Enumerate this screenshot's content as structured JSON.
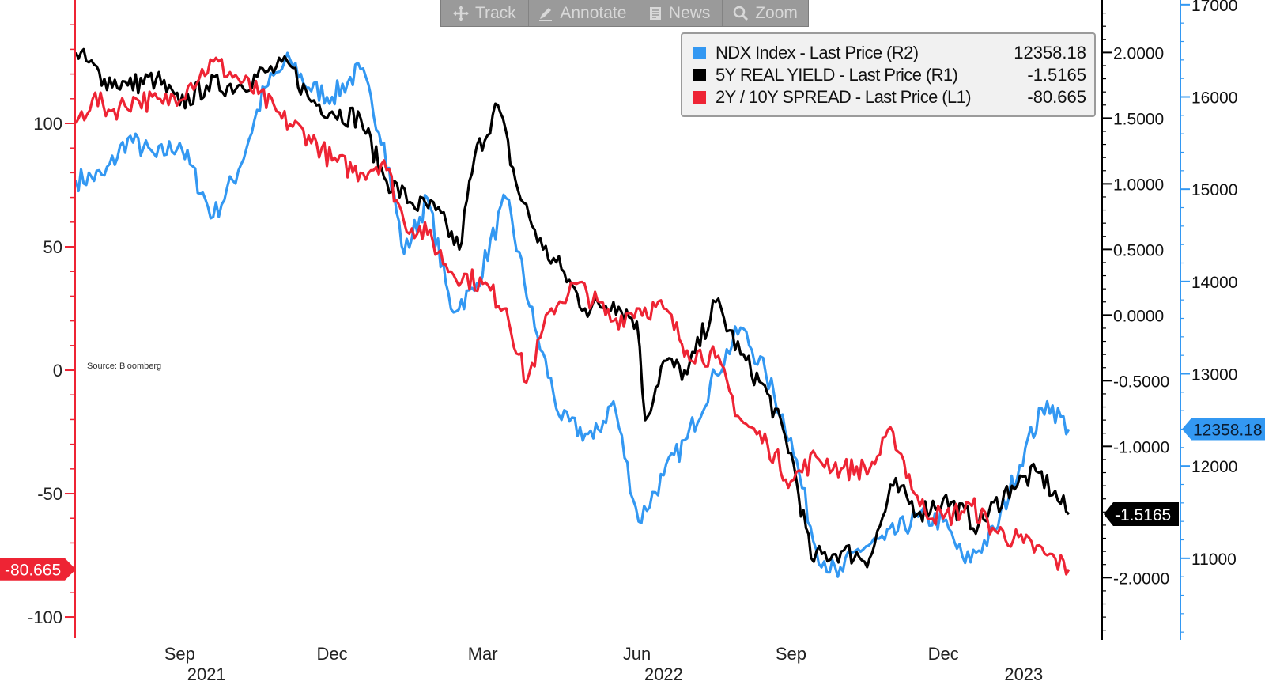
{
  "toolbar": [
    {
      "label": "Track",
      "icon": "crosshair-icon"
    },
    {
      "label": "Annotate",
      "icon": "pencil-icon"
    },
    {
      "label": "News",
      "icon": "news-icon"
    },
    {
      "label": "Zoom",
      "icon": "magnifier-icon"
    }
  ],
  "legend": [
    {
      "label": "NDX Index - Last Price (R2)",
      "value": "12358.18",
      "color": "#3398f2"
    },
    {
      "label": "5Y REAL YIELD - Last Price (R1)",
      "value": "-1.5165",
      "color": "#000000"
    },
    {
      "label": "2Y / 10Y SPREAD - Last Price (L1)",
      "value": "-80.665",
      "color": "#ee2434"
    }
  ],
  "chart_data": {
    "type": "line",
    "source_note": "Source: Bloomberg",
    "x_axis": {
      "range": [
        "2021-07-15",
        "2023-02-28"
      ],
      "month_labels": [
        {
          "label": "Sep",
          "date": "2021-09-15"
        },
        {
          "label": "Dec",
          "date": "2021-12-15"
        },
        {
          "label": "Mar",
          "date": "2022-03-15"
        },
        {
          "label": "Jun",
          "date": "2022-06-15"
        },
        {
          "label": "Sep",
          "date": "2022-09-15"
        },
        {
          "label": "Dec",
          "date": "2022-12-15"
        }
      ],
      "year_labels": [
        {
          "label": "2021",
          "date": "2021-10-01"
        },
        {
          "label": "2022",
          "date": "2022-07-01"
        },
        {
          "label": "2023",
          "date": "2023-02-01"
        }
      ]
    },
    "axes": {
      "L1": {
        "side": "left",
        "color": "#ee2434",
        "ylim": [
          -108,
          150
        ],
        "ticks": [
          100,
          50,
          0,
          -50,
          -100
        ],
        "tick_labels": [
          "100",
          "50",
          "0",
          "-50",
          "-100"
        ]
      },
      "R1": {
        "side": "right-inner",
        "color": "#000000",
        "ylim": [
          -2.45,
          2.4
        ],
        "ticks": [
          2,
          1.5,
          1,
          0.5,
          0,
          -0.5,
          -1,
          -2
        ],
        "tick_labels": [
          "2.0000",
          "1.5000",
          "1.0000",
          "0.5000",
          "0.0000",
          "-0.5000",
          "-1.0000",
          "-2.0000"
        ]
      },
      "R2": {
        "side": "right-outer",
        "color": "#3398f2",
        "ylim": [
          10150,
          17050
        ],
        "ticks": [
          17000,
          16000,
          15000,
          14000,
          13000,
          12000,
          11000
        ],
        "tick_labels": [
          "17000",
          "16000",
          "15000",
          "14000",
          "13000",
          "12000",
          "11000"
        ]
      }
    },
    "series": [
      {
        "name": "NDX Index - Last Price (R2)",
        "axis": "R2",
        "color": "#3398f2",
        "last_label": "12358.18",
        "dates": [
          "2021-07-15",
          "2021-08-01",
          "2021-08-15",
          "2021-09-01",
          "2021-09-15",
          "2021-10-05",
          "2021-10-20",
          "2021-11-05",
          "2021-11-20",
          "2021-12-01",
          "2021-12-15",
          "2022-01-01",
          "2022-01-15",
          "2022-01-27",
          "2022-02-10",
          "2022-02-24",
          "2022-03-10",
          "2022-03-29",
          "2022-04-15",
          "2022-05-01",
          "2022-05-20",
          "2022-06-01",
          "2022-06-16",
          "2022-07-01",
          "2022-07-15",
          "2022-08-01",
          "2022-08-16",
          "2022-08-31",
          "2022-09-15",
          "2022-09-30",
          "2022-10-13",
          "2022-10-25",
          "2022-11-10",
          "2022-11-30",
          "2022-12-15",
          "2022-12-28",
          "2023-01-15",
          "2023-02-02",
          "2023-02-15",
          "2023-02-28"
        ],
        "values": [
          15100,
          15150,
          15550,
          15350,
          15500,
          14700,
          15200,
          16100,
          16400,
          16100,
          16000,
          16300,
          15500,
          14300,
          14900,
          13700,
          13900,
          14900,
          13500,
          12500,
          12300,
          12700,
          11400,
          11900,
          12300,
          13000,
          13500,
          13000,
          12300,
          11100,
          10800,
          11100,
          11200,
          11450,
          11400,
          10950,
          11300,
          12200,
          12700,
          12400
        ]
      },
      {
        "name": "5Y REAL YIELD - Last Price (R1)",
        "axis": "R1",
        "color": "#000000",
        "last_label": "-1.5165",
        "dates": [
          "2021-07-15",
          "2021-08-01",
          "2021-08-15",
          "2021-09-01",
          "2021-09-15",
          "2021-10-01",
          "2021-10-20",
          "2021-11-05",
          "2021-11-20",
          "2021-12-01",
          "2021-12-15",
          "2022-01-01",
          "2022-01-15",
          "2022-02-01",
          "2022-02-15",
          "2022-03-01",
          "2022-03-10",
          "2022-03-24",
          "2022-04-05",
          "2022-04-20",
          "2022-05-01",
          "2022-05-15",
          "2022-06-01",
          "2022-06-15",
          "2022-06-20",
          "2022-07-01",
          "2022-07-15",
          "2022-08-01",
          "2022-08-16",
          "2022-09-01",
          "2022-09-15",
          "2022-09-27",
          "2022-10-15",
          "2022-11-01",
          "2022-11-15",
          "2022-12-01",
          "2022-12-15",
          "2023-01-05",
          "2023-01-25",
          "2023-02-10",
          "2023-02-28"
        ],
        "values": [
          2.0,
          1.8,
          1.75,
          1.8,
          1.6,
          1.75,
          1.75,
          1.85,
          1.9,
          1.65,
          1.55,
          1.5,
          1.05,
          0.85,
          0.8,
          0.5,
          1.2,
          1.6,
          0.95,
          0.5,
          0.35,
          0.05,
          0.1,
          -0.05,
          -0.8,
          -0.35,
          -0.45,
          0.1,
          -0.3,
          -0.6,
          -1.05,
          -1.85,
          -1.8,
          -1.85,
          -1.3,
          -1.5,
          -1.4,
          -1.6,
          -1.3,
          -1.2,
          -1.5165
        ]
      },
      {
        "name": "2Y / 10Y SPREAD - Last Price (L1)",
        "axis": "L1",
        "color": "#ee2434",
        "last_label": "-80.665",
        "dates": [
          "2021-07-15",
          "2021-07-25",
          "2021-08-05",
          "2021-08-20",
          "2021-09-05",
          "2021-09-20",
          "2021-10-05",
          "2021-10-20",
          "2021-11-01",
          "2021-11-15",
          "2021-12-01",
          "2021-12-15",
          "2022-01-01",
          "2022-01-15",
          "2022-01-27",
          "2022-02-10",
          "2022-02-24",
          "2022-03-15",
          "2022-03-29",
          "2022-04-10",
          "2022-04-25",
          "2022-05-10",
          "2022-06-01",
          "2022-06-15",
          "2022-07-01",
          "2022-07-15",
          "2022-08-01",
          "2022-08-16",
          "2022-09-01",
          "2022-09-15",
          "2022-09-30",
          "2022-10-15",
          "2022-11-01",
          "2022-11-15",
          "2022-12-01",
          "2022-12-15",
          "2023-01-01",
          "2023-01-15",
          "2023-02-01",
          "2023-02-15",
          "2023-02-28"
        ],
        "values": [
          100,
          110,
          105,
          110,
          108,
          115,
          125,
          118,
          112,
          102,
          95,
          85,
          80,
          85,
          60,
          55,
          40,
          35,
          25,
          -5,
          25,
          35,
          20,
          25,
          25,
          8,
          5,
          -20,
          -30,
          -45,
          -35,
          -40,
          -40,
          -25,
          -55,
          -60,
          -55,
          -65,
          -70,
          -75,
          -80.665
        ]
      }
    ]
  }
}
